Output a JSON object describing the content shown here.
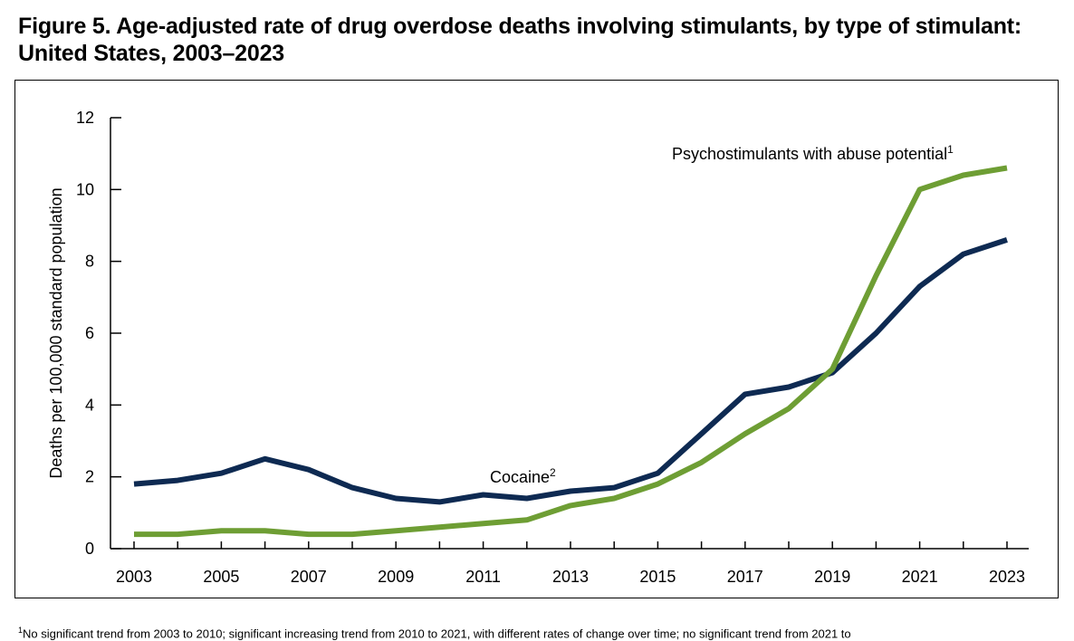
{
  "chart_data": {
    "type": "line",
    "title_line1": "Figure 5. Age-adjusted rate of drug overdose deaths involving stimulants, by type of stimulant:",
    "title_line2": "United States, 2003–2023",
    "ylabel": "Deaths per 100,000 standard population",
    "xlabel": "",
    "ylim": [
      0,
      12
    ],
    "yticks": [
      0,
      2,
      4,
      6,
      8,
      10,
      12
    ],
    "x": [
      2003,
      2004,
      2005,
      2006,
      2007,
      2008,
      2009,
      2010,
      2011,
      2012,
      2013,
      2014,
      2015,
      2016,
      2017,
      2018,
      2019,
      2020,
      2021,
      2022,
      2023
    ],
    "xtick_labels": [
      "2003",
      "2005",
      "2007",
      "2009",
      "2011",
      "2013",
      "2015",
      "2017",
      "2019",
      "2021",
      "2023"
    ],
    "series": [
      {
        "name": "Cocaine",
        "label_text": "Cocaine",
        "label_sup": "2",
        "color": "#0e2a52",
        "values": [
          1.8,
          1.9,
          2.1,
          2.5,
          2.2,
          1.7,
          1.4,
          1.3,
          1.5,
          1.4,
          1.6,
          1.7,
          2.1,
          3.2,
          4.3,
          4.5,
          4.9,
          6.0,
          7.3,
          8.2,
          8.6
        ]
      },
      {
        "name": "Psychostimulants with abuse potential",
        "label_text": "Psychostimulants with abuse potential",
        "label_sup": "1",
        "color": "#6e9e34",
        "values": [
          0.4,
          0.4,
          0.5,
          0.5,
          0.4,
          0.4,
          0.5,
          0.6,
          0.7,
          0.8,
          1.2,
          1.4,
          1.8,
          2.4,
          3.2,
          3.9,
          5.0,
          7.6,
          10.0,
          10.4,
          10.6
        ]
      }
    ]
  },
  "footnote": {
    "sup": "1",
    "text": "No significant trend from 2003 to 2010; significant increasing trend from 2010 to 2021, with different rates of change over time; no significant trend from 2021 to"
  }
}
